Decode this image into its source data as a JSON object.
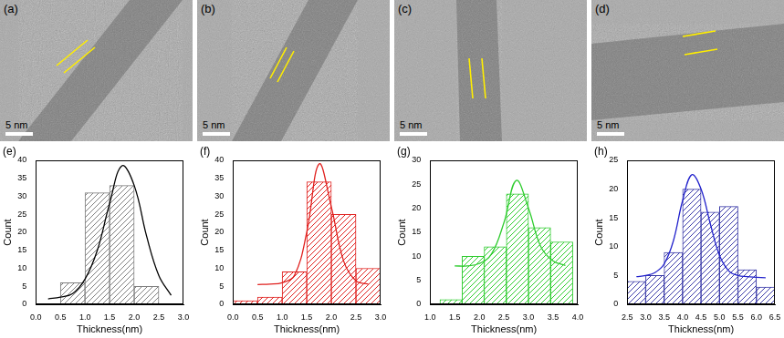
{
  "images": [
    {
      "label": "(a)",
      "scale_bar": "5 nm"
    },
    {
      "label": "(b)",
      "scale_bar": "5 nm"
    },
    {
      "label": "(c)",
      "scale_bar": "5 nm"
    },
    {
      "label": "(d)",
      "scale_bar": "5 nm"
    }
  ],
  "chart_data": [
    {
      "label": "(e)",
      "type": "histogram",
      "x_label": "Thickness(nm)",
      "y_label": "Count",
      "bins": [
        0.5,
        1.0,
        1.5,
        2.0,
        2.5
      ],
      "counts": [
        6,
        31,
        33,
        5
      ],
      "color": "#7f7f7f",
      "fit": {
        "x": [
          0.25,
          0.5,
          0.75,
          1.0,
          1.25,
          1.5,
          1.75,
          2.0,
          2.25,
          2.5,
          2.75
        ],
        "y": [
          1.5,
          2,
          3,
          7,
          15,
          28,
          38.5,
          33,
          19,
          8,
          2.5
        ],
        "color": "#000000"
      },
      "xlim": [
        0,
        3
      ],
      "xticks": [
        {
          "value": 0,
          "label": "0.0"
        },
        0.5,
        {
          "value": 1,
          "label": "1.0"
        },
        1.5,
        {
          "value": 2,
          "label": "2.0"
        },
        2.5,
        {
          "value": 3,
          "label": "3.0"
        }
      ],
      "ylim": [
        0,
        40
      ],
      "yticks": [
        0,
        5,
        10,
        15,
        20,
        25,
        30,
        35,
        40
      ],
      "grid": false
    },
    {
      "label": "(f)",
      "type": "histogram",
      "x_label": "Thickness(nm)",
      "y_label": "Count",
      "bins": [
        0.0,
        0.5,
        1.0,
        1.5,
        2.0,
        2.5,
        3.0
      ],
      "counts": [
        1,
        2,
        9,
        34,
        25,
        10
      ],
      "color": "#e0201e",
      "fit": {
        "x": [
          0.5,
          0.75,
          1.0,
          1.25,
          1.5,
          1.75,
          2.0,
          2.25,
          2.5,
          2.75
        ],
        "y": [
          5.5,
          5.6,
          6,
          8,
          20,
          39,
          27,
          12,
          6.5,
          5.6
        ],
        "color": "#e0201e"
      },
      "xlim": [
        0,
        3
      ],
      "xticks": [
        {
          "value": 0,
          "label": "0.0"
        },
        0.5,
        {
          "value": 1,
          "label": "1.0"
        },
        1.5,
        {
          "value": 2,
          "label": "2.0"
        },
        2.5,
        {
          "value": 3,
          "label": "3.0"
        }
      ],
      "ylim": [
        0,
        40
      ],
      "yticks": [
        0,
        5,
        10,
        15,
        20,
        25,
        30,
        35,
        40
      ],
      "grid": false
    },
    {
      "label": "(g)",
      "type": "histogram",
      "x_label": "Thickness(nm)",
      "y_label": "Count",
      "bins": [
        1.2,
        1.65,
        2.1,
        2.55,
        3.0,
        3.45,
        3.9
      ],
      "counts": [
        1,
        10,
        12,
        23,
        16,
        13
      ],
      "color": "#2ecc2e",
      "fit": {
        "x": [
          1.5,
          1.75,
          2.0,
          2.25,
          2.5,
          2.75,
          3.0,
          3.25,
          3.5,
          3.75
        ],
        "y": [
          8,
          8,
          8.5,
          10.5,
          17,
          25.8,
          20,
          12,
          9,
          8.1
        ],
        "color": "#2ecc2e"
      },
      "xlim": [
        1,
        4
      ],
      "xticks": [
        {
          "value": 1,
          "label": "1.0"
        },
        1.5,
        {
          "value": 2,
          "label": "2.0"
        },
        2.5,
        {
          "value": 3,
          "label": "3.0"
        },
        3.5,
        {
          "value": 4,
          "label": "4.0"
        }
      ],
      "ylim": [
        0,
        30
      ],
      "yticks": [
        0,
        5,
        10,
        15,
        20,
        25,
        30
      ],
      "grid": false
    },
    {
      "label": "(h)",
      "type": "histogram",
      "x_label": "Thickness(nm)",
      "y_label": "Count",
      "bins": [
        2.5,
        3.0,
        3.5,
        4.0,
        4.5,
        5.0,
        5.5,
        6.0,
        6.5
      ],
      "counts": [
        4,
        5,
        9,
        20,
        16,
        17,
        6,
        3
      ],
      "color": "#3a3aa8",
      "fit": {
        "x": [
          2.75,
          3.0,
          3.25,
          3.5,
          3.75,
          4.0,
          4.25,
          4.5,
          4.75,
          5.0,
          5.25,
          5.5,
          5.75,
          6.0,
          6.25
        ],
        "y": [
          4.8,
          5,
          5.5,
          7,
          11,
          18,
          22.5,
          20,
          14,
          8.5,
          5.8,
          5,
          4.8,
          4.7,
          4.6
        ],
        "color": "#2222cc"
      },
      "xlim": [
        2.5,
        6.5
      ],
      "xticks": [
        2.5,
        {
          "value": 3,
          "label": "3.0"
        },
        3.5,
        {
          "value": 4,
          "label": "4.0"
        },
        4.5,
        {
          "value": 5,
          "label": "5.0"
        },
        5.5,
        {
          "value": 6,
          "label": "6.0"
        },
        6.5
      ],
      "ylim": [
        0,
        25
      ],
      "yticks": [
        0,
        5,
        10,
        15,
        20,
        25
      ],
      "grid": false
    }
  ]
}
